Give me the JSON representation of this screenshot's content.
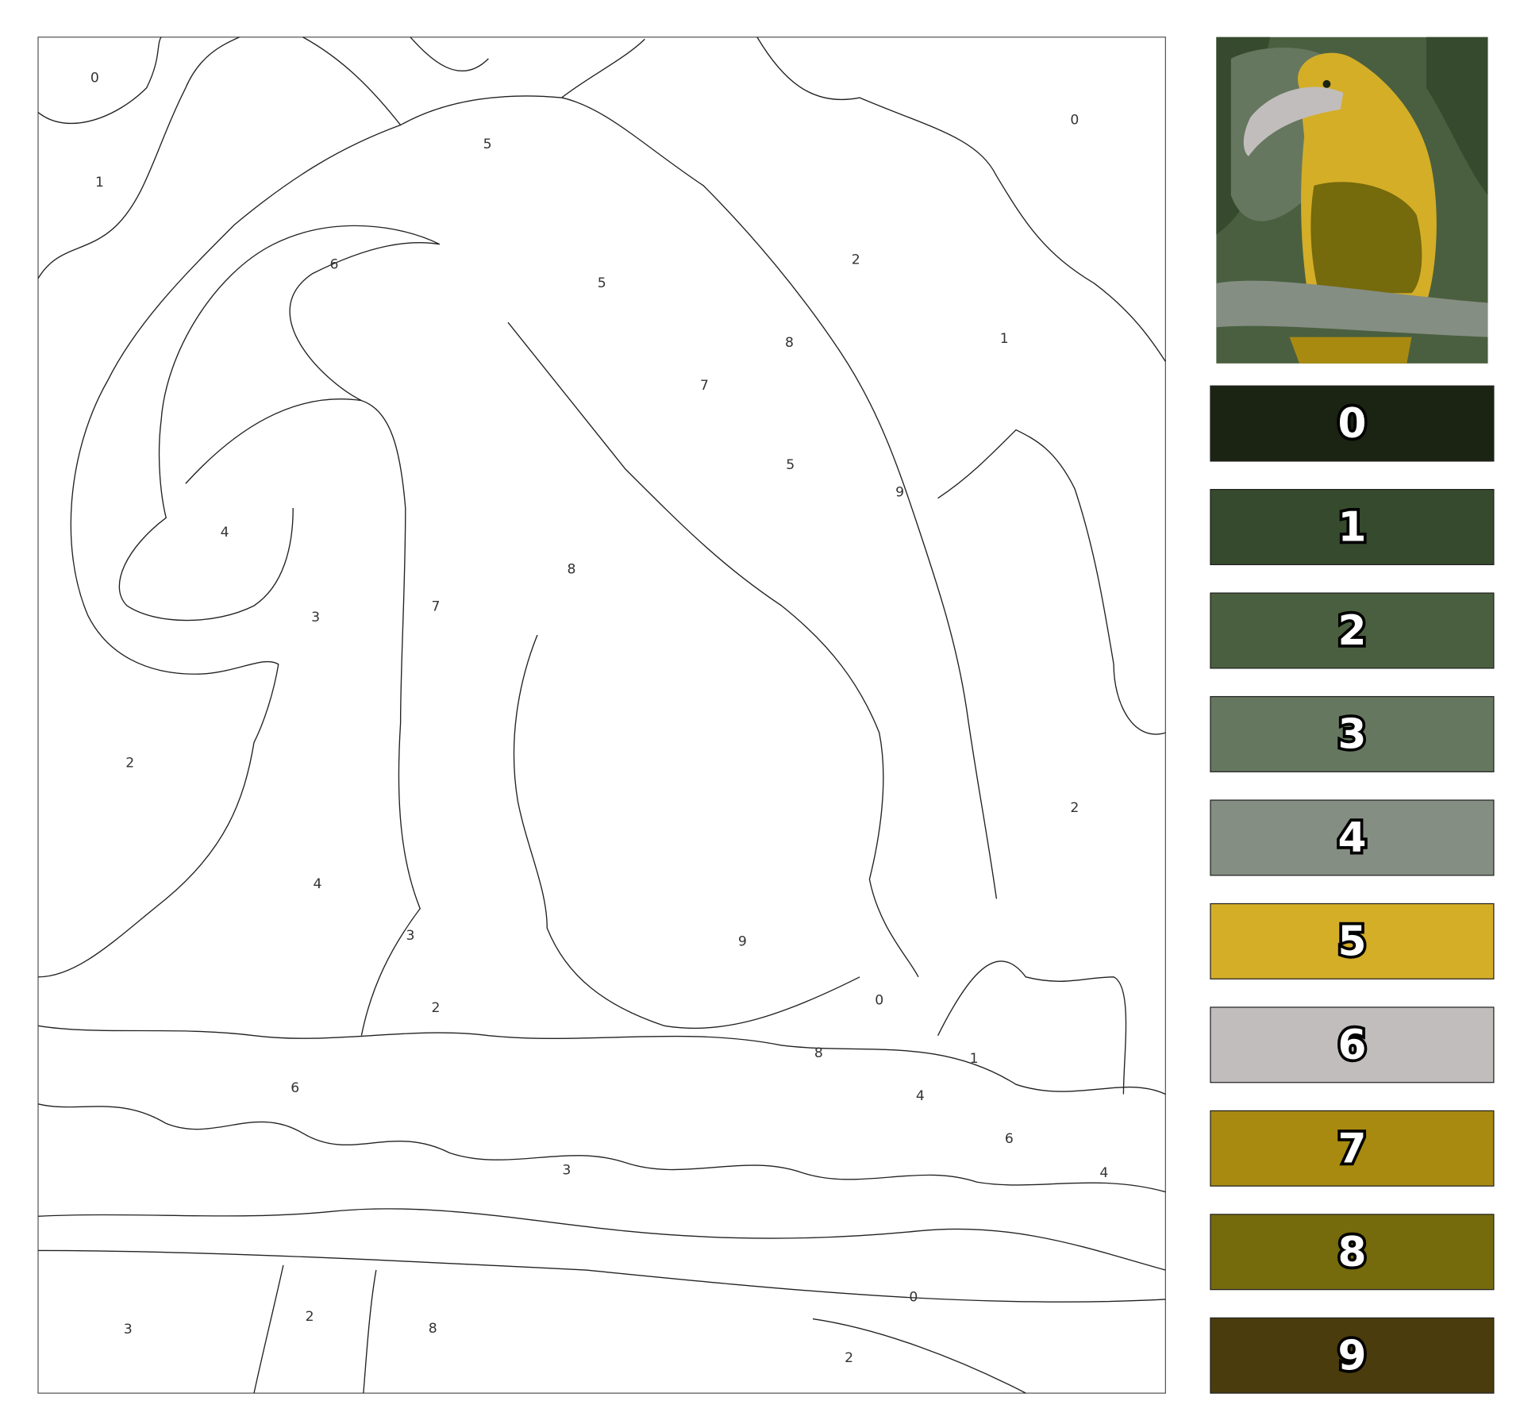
{
  "drawing": {
    "regions": [
      "0",
      "0",
      "5",
      "1",
      "6",
      "2",
      "5",
      "8",
      "1",
      "7",
      "5",
      "9",
      "4",
      "8",
      "3",
      "7",
      "2",
      "2",
      "4",
      "9",
      "3",
      "2",
      "1",
      "0",
      "3",
      "2",
      "8",
      "2",
      "6",
      "3",
      "4",
      "6",
      "4",
      "0",
      "8"
    ]
  },
  "palette": [
    {
      "label": "0",
      "color": "#1b2313"
    },
    {
      "label": "1",
      "color": "#364a2d"
    },
    {
      "label": "2",
      "color": "#4a5f3f"
    },
    {
      "label": "3",
      "color": "#66775f"
    },
    {
      "label": "4",
      "color": "#858e83"
    },
    {
      "label": "5",
      "color": "#d4ae27"
    },
    {
      "label": "6",
      "color": "#c2bdbd"
    },
    {
      "label": "7",
      "color": "#a88a10"
    },
    {
      "label": "8",
      "color": "#756a0c"
    },
    {
      "label": "9",
      "color": "#4a3c0c"
    }
  ]
}
